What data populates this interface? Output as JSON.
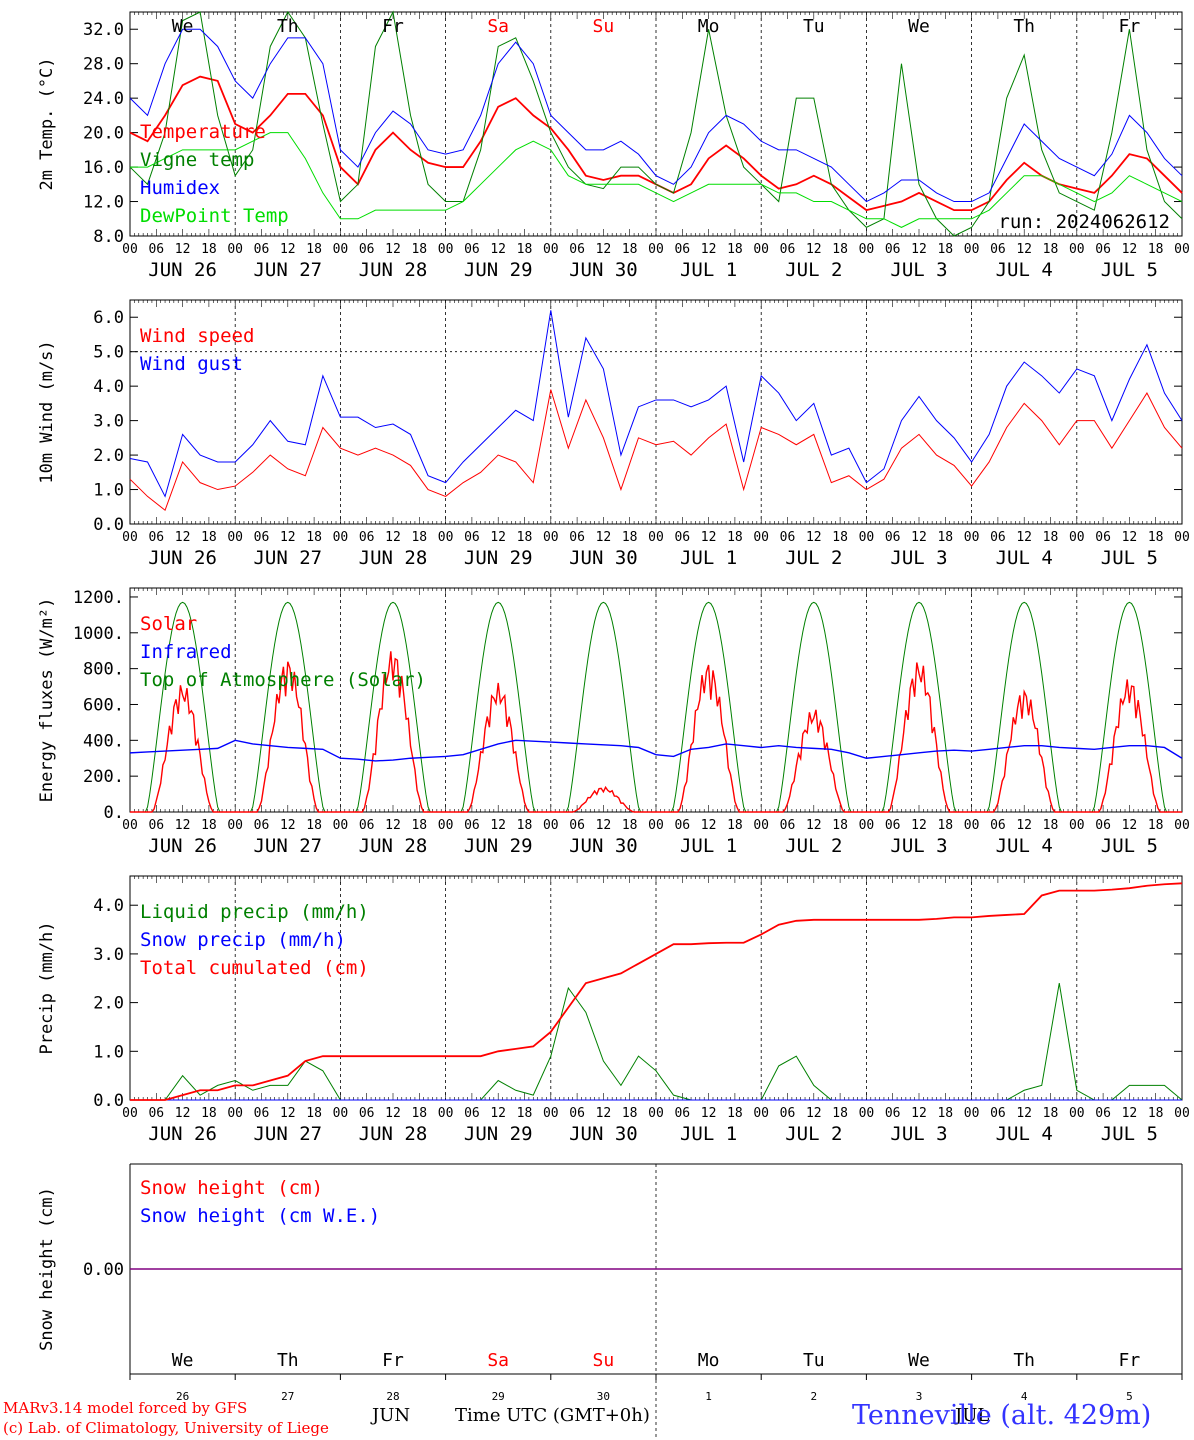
{
  "meta": {
    "run_label": "run: 2024062612",
    "credit_line1": "MARv3.14 model forced by GFS",
    "credit_line2": "(c) Lab. of Climatology, University of Liege",
    "station": "Tenneville (alt. 429m)",
    "xlabel_bottom": "Time UTC (GMT+0h)",
    "month_bottom": "JUN",
    "month_bottom2": "JUL"
  },
  "colors": {
    "red": "#ff0000",
    "green": "#008000",
    "blue": "#0000ff",
    "lightgreen": "#00dd00",
    "purple": "#800080"
  },
  "time_axis": {
    "days": [
      "JUN 26",
      "JUN 27",
      "JUN 28",
      "JUN 29",
      "JUN 30",
      "JUL  1",
      "JUL  2",
      "JUL  3",
      "JUL  4",
      "JUL  5"
    ],
    "weekdays": [
      "We",
      "Th",
      "Fr",
      "Sa",
      "Su",
      "Mo",
      "Tu",
      "We",
      "Th",
      "Fr"
    ],
    "weekday_red": [
      false,
      false,
      false,
      true,
      true,
      false,
      false,
      false,
      false,
      false
    ],
    "day_numbers": [
      "26",
      "27",
      "28",
      "29",
      "30",
      "1",
      "2",
      "3",
      "4",
      "5"
    ],
    "hour_ticks": [
      "00",
      "06",
      "12",
      "18"
    ],
    "final_tick": "00"
  },
  "chart_data": [
    {
      "type": "line",
      "id": "temp",
      "ylabel": "2m Temp. (°C)",
      "ylim": [
        8,
        34
      ],
      "yticks": [
        "8.0",
        "12.0",
        "16.0",
        "20.0",
        "24.0",
        "28.0",
        "32.0"
      ],
      "legend": [
        "Temperature",
        "Vigne temp",
        "Humidex",
        "DewPoint Temp"
      ],
      "x_hours": [
        0,
        4,
        8,
        12,
        16,
        20,
        24,
        28,
        32,
        36,
        40,
        44,
        48,
        52,
        56,
        60,
        64,
        68,
        72,
        76,
        80,
        84,
        88,
        92,
        96,
        100,
        104,
        108,
        112,
        116,
        120,
        124,
        128,
        132,
        136,
        140,
        144,
        148,
        152,
        156,
        160,
        164,
        168,
        172,
        176,
        180,
        184,
        188,
        192,
        196,
        200,
        204,
        208,
        212,
        216,
        220,
        224,
        228,
        232,
        236,
        240
      ],
      "series": [
        {
          "name": "Temperature",
          "color": "red",
          "values": [
            20,
            19,
            22,
            25.5,
            26.5,
            26,
            21,
            20,
            22,
            24.5,
            24.5,
            22,
            16,
            14,
            18,
            20,
            18,
            16.5,
            16,
            16,
            19,
            23,
            24,
            22,
            20.5,
            18,
            15,
            14.5,
            15,
            15,
            14,
            13,
            14,
            17,
            18.5,
            17,
            15,
            13.5,
            14,
            15,
            14,
            12.5,
            11,
            11.5,
            12,
            13,
            12,
            11,
            11,
            12,
            14.5,
            16.5,
            15,
            14,
            13.5,
            13,
            15,
            17.5,
            17,
            15,
            13
          ]
        },
        {
          "name": "Vigne temp",
          "color": "green",
          "values": [
            16,
            14,
            20,
            33,
            34,
            22,
            15,
            18,
            30,
            34,
            31,
            21,
            12,
            14,
            30,
            36,
            22,
            14,
            12,
            12,
            18,
            30,
            31,
            26,
            20,
            16,
            14,
            13.5,
            16,
            16,
            14,
            13,
            20,
            32,
            22,
            16,
            14,
            12,
            24,
            24,
            14,
            11,
            9,
            10,
            28,
            14,
            10,
            8,
            9,
            12,
            24,
            29,
            18,
            13,
            12,
            11,
            20,
            32,
            18,
            12,
            10
          ]
        },
        {
          "name": "Humidex",
          "color": "blue",
          "values": [
            24,
            22,
            28,
            32,
            32,
            30,
            26,
            24,
            28,
            31,
            31,
            28,
            18,
            16,
            20,
            22.5,
            21,
            18,
            17.5,
            18,
            22,
            28,
            30.5,
            28,
            22,
            20,
            18,
            18,
            19,
            17.5,
            15,
            14,
            16,
            20,
            22,
            21,
            19,
            18,
            18,
            17,
            16,
            14,
            12,
            13,
            14.5,
            14.5,
            13,
            12,
            12,
            13,
            17,
            21,
            19,
            17,
            16,
            15,
            17.5,
            22,
            20,
            17,
            15
          ]
        },
        {
          "name": "DewPoint Temp",
          "color": "lightgreen",
          "values": [
            16,
            16,
            17,
            18,
            18,
            18,
            18,
            19,
            20,
            20,
            17,
            13,
            10,
            10,
            11,
            11,
            11,
            11,
            11,
            12,
            14,
            16,
            18,
            19,
            18,
            15,
            14,
            14,
            14,
            14,
            13,
            12,
            13,
            14,
            14,
            14,
            14,
            13,
            13,
            12,
            12,
            11,
            10,
            10,
            9,
            10,
            10,
            10,
            10,
            11,
            13,
            15,
            15,
            14,
            13,
            12,
            13,
            15,
            14,
            13,
            12
          ]
        }
      ]
    },
    {
      "type": "line",
      "id": "wind",
      "ylabel": "10m Wind (m/s)",
      "ylim": [
        0,
        6.5
      ],
      "yticks": [
        "0.0",
        "1.0",
        "2.0",
        "3.0",
        "4.0",
        "5.0",
        "6.0"
      ],
      "ref_line": 5.0,
      "legend": [
        "Wind speed",
        "Wind gust"
      ],
      "x_hours": [
        0,
        4,
        8,
        12,
        16,
        20,
        24,
        28,
        32,
        36,
        40,
        44,
        48,
        52,
        56,
        60,
        64,
        68,
        72,
        76,
        80,
        84,
        88,
        92,
        96,
        100,
        104,
        108,
        112,
        116,
        120,
        124,
        128,
        132,
        136,
        140,
        144,
        148,
        152,
        156,
        160,
        164,
        168,
        172,
        176,
        180,
        184,
        188,
        192,
        196,
        200,
        204,
        208,
        212,
        216,
        220,
        224,
        228,
        232,
        236,
        240
      ],
      "series": [
        {
          "name": "Wind speed",
          "color": "red",
          "values": [
            1.3,
            0.8,
            0.4,
            1.8,
            1.2,
            1.0,
            1.1,
            1.5,
            2.0,
            1.6,
            1.4,
            2.8,
            2.2,
            2.0,
            2.2,
            2.0,
            1.7,
            1.0,
            0.8,
            1.2,
            1.5,
            2.0,
            1.8,
            1.2,
            3.9,
            2.2,
            3.6,
            2.5,
            1.0,
            2.5,
            2.3,
            2.4,
            2.0,
            2.5,
            2.9,
            1.0,
            2.8,
            2.6,
            2.3,
            2.6,
            1.2,
            1.4,
            1.0,
            1.3,
            2.2,
            2.6,
            2.0,
            1.7,
            1.1,
            1.8,
            2.8,
            3.5,
            3.0,
            2.3,
            3.0,
            3.0,
            2.2,
            3.0,
            3.8,
            2.8,
            2.2
          ]
        },
        {
          "name": "Wind gust",
          "color": "blue",
          "values": [
            1.9,
            1.8,
            0.8,
            2.6,
            2.0,
            1.8,
            1.8,
            2.3,
            3.0,
            2.4,
            2.3,
            4.3,
            3.1,
            3.1,
            2.8,
            2.9,
            2.6,
            1.4,
            1.2,
            1.8,
            2.3,
            2.8,
            3.3,
            3.0,
            6.2,
            3.1,
            5.4,
            4.5,
            2.0,
            3.4,
            3.6,
            3.6,
            3.4,
            3.6,
            4.0,
            1.8,
            4.3,
            3.8,
            3.0,
            3.5,
            2.0,
            2.2,
            1.2,
            1.6,
            3.0,
            3.7,
            3.0,
            2.5,
            1.8,
            2.6,
            4.0,
            4.7,
            4.3,
            3.8,
            4.5,
            4.3,
            3.0,
            4.2,
            5.2,
            3.8,
            3.0
          ]
        }
      ]
    },
    {
      "type": "line",
      "id": "energy",
      "ylabel": "Energy fluxes (W/m²)",
      "ylim": [
        0,
        1250
      ],
      "yticks": [
        "0.",
        "200.",
        "400.",
        "600.",
        "800.",
        "1000.",
        "1200."
      ],
      "legend": [
        "Solar",
        "Infrared",
        "Top of Atmosphere (Solar)"
      ],
      "toa_peak": 1170,
      "solar_peaks": [
        720,
        860,
        910,
        720,
        140,
        840,
        580,
        850,
        690,
        750
      ],
      "infrared_values": [
        330,
        335,
        340,
        345,
        350,
        355,
        400,
        380,
        370,
        360,
        355,
        350,
        300,
        295,
        285,
        290,
        300,
        305,
        310,
        320,
        350,
        380,
        400,
        395,
        390,
        385,
        380,
        375,
        370,
        360,
        320,
        310,
        350,
        360,
        380,
        370,
        360,
        370,
        360,
        355,
        350,
        330,
        300,
        310,
        320,
        330,
        340,
        345,
        340,
        350,
        360,
        370,
        370,
        360,
        355,
        350,
        360,
        370,
        370,
        360,
        300
      ]
    },
    {
      "type": "line",
      "id": "precip",
      "ylabel": "Precip (mm/h)",
      "ylim": [
        0,
        4.6
      ],
      "yticks": [
        "0.0",
        "1.0",
        "2.0",
        "3.0",
        "4.0"
      ],
      "legend": [
        "Liquid precip (mm/h)",
        "Snow precip (mm/h)",
        "Total cumulated (cm)"
      ],
      "x_hours": [
        0,
        4,
        8,
        12,
        16,
        20,
        24,
        28,
        32,
        36,
        40,
        44,
        48,
        52,
        56,
        60,
        64,
        68,
        72,
        76,
        80,
        84,
        88,
        92,
        96,
        100,
        104,
        108,
        112,
        116,
        120,
        124,
        128,
        132,
        136,
        140,
        144,
        148,
        152,
        156,
        160,
        164,
        168,
        172,
        176,
        180,
        184,
        188,
        192,
        196,
        200,
        204,
        208,
        212,
        216,
        220,
        224,
        228,
        232,
        236,
        240
      ],
      "series": [
        {
          "name": "Liquid precip (mm/h)",
          "color": "green",
          "values": [
            0,
            0,
            0,
            0.5,
            0.1,
            0.3,
            0.4,
            0.2,
            0.3,
            0.3,
            0.8,
            0.6,
            0,
            0,
            0,
            0,
            0,
            0,
            0,
            0,
            0,
            0.4,
            0.2,
            0.1,
            0.9,
            2.3,
            1.8,
            0.8,
            0.3,
            0.9,
            0.6,
            0.1,
            0,
            0,
            0,
            0,
            0,
            0.7,
            0.9,
            0.3,
            0,
            0,
            0,
            0,
            0,
            0,
            0,
            0,
            0,
            0,
            0,
            0.2,
            0.3,
            2.4,
            0.2,
            0,
            0,
            0.3,
            0.3,
            0.3,
            0
          ]
        },
        {
          "name": "Snow precip (mm/h)",
          "color": "blue",
          "values": [
            0,
            0,
            0,
            0,
            0,
            0,
            0,
            0,
            0,
            0,
            0,
            0,
            0,
            0,
            0,
            0,
            0,
            0,
            0,
            0,
            0,
            0,
            0,
            0,
            0,
            0,
            0,
            0,
            0,
            0,
            0,
            0,
            0,
            0,
            0,
            0,
            0,
            0,
            0,
            0,
            0,
            0,
            0,
            0,
            0,
            0,
            0,
            0,
            0,
            0,
            0,
            0,
            0,
            0,
            0,
            0,
            0,
            0,
            0,
            0,
            0
          ]
        },
        {
          "name": "Total cumulated (cm)",
          "color": "red",
          "values": [
            0,
            0,
            0,
            0.1,
            0.2,
            0.2,
            0.3,
            0.3,
            0.4,
            0.5,
            0.8,
            0.9,
            0.9,
            0.9,
            0.9,
            0.9,
            0.9,
            0.9,
            0.9,
            0.9,
            0.9,
            1.0,
            1.05,
            1.1,
            1.4,
            1.9,
            2.4,
            2.5,
            2.6,
            2.8,
            3.0,
            3.2,
            3.2,
            3.22,
            3.23,
            3.23,
            3.4,
            3.6,
            3.68,
            3.7,
            3.7,
            3.7,
            3.7,
            3.7,
            3.7,
            3.7,
            3.72,
            3.75,
            3.75,
            3.78,
            3.8,
            3.82,
            4.2,
            4.3,
            4.3,
            4.3,
            4.32,
            4.35,
            4.4,
            4.43,
            4.45
          ]
        }
      ]
    },
    {
      "type": "line",
      "id": "snow",
      "ylabel": "Snow height (cm)",
      "ylim": [
        -1,
        1
      ],
      "yticks": [
        "0.00"
      ],
      "legend": [
        "Snow height (cm)",
        "Snow height (cm W.E.)"
      ],
      "series": [
        {
          "name": "Snow height (cm)",
          "color": "red",
          "values": [
            0,
            0
          ]
        },
        {
          "name": "Snow height (cm W.E.)",
          "color": "blue",
          "values": [
            0,
            0
          ]
        }
      ]
    }
  ]
}
